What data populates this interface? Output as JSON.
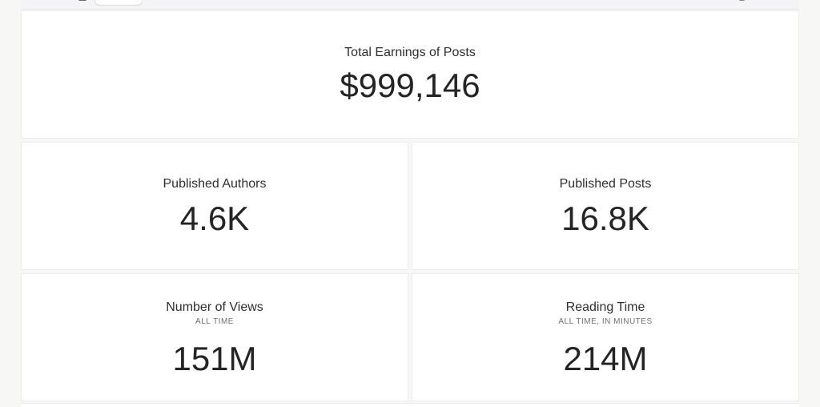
{
  "stats": {
    "total_earnings": {
      "label": "Total Earnings of Posts",
      "value": "$999,146"
    },
    "published_authors": {
      "label": "Published Authors",
      "value": "4.6K"
    },
    "published_posts": {
      "label": "Published Posts",
      "value": "16.8K"
    },
    "number_of_views": {
      "label": "Number of Views",
      "sublabel": "ALL TIME",
      "value": "151M"
    },
    "reading_time": {
      "label": "Reading Time",
      "sublabel": "ALL TIME, IN MINUTES",
      "value": "214M"
    }
  }
}
